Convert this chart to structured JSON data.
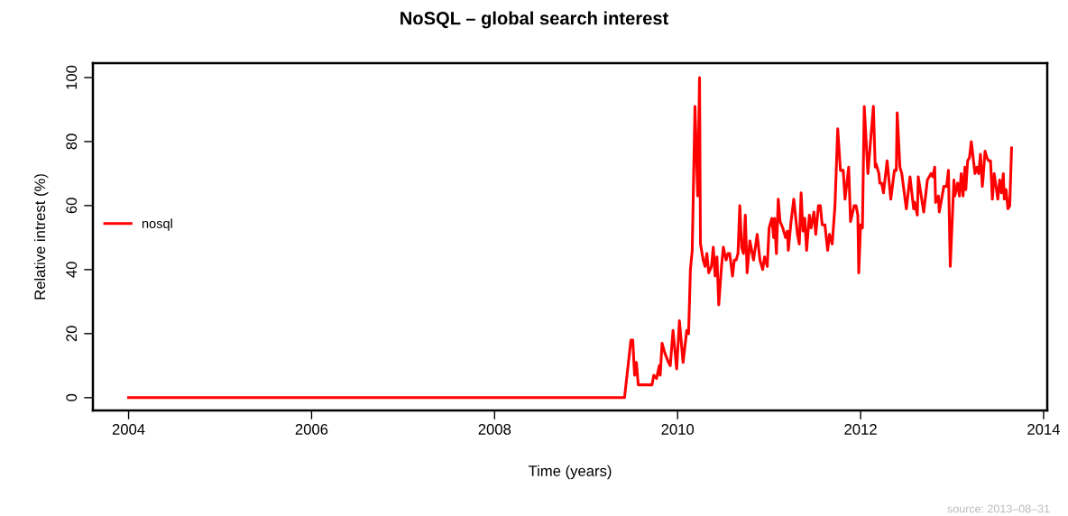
{
  "chart_data": {
    "type": "line",
    "title": "NoSQL – global search interest",
    "xlabel": "Time (years)",
    "ylabel": "Relative intrest (%)",
    "annotations": [
      "source: 2013–08–31"
    ],
    "series": [
      {
        "name": "nosql",
        "color": "#ff0000",
        "x": [
          2004.0,
          2009.42,
          2009.49,
          2009.51,
          2009.53,
          2009.55,
          2009.57,
          2009.72,
          2009.74,
          2009.77,
          2009.8,
          2009.81,
          2009.83,
          2009.86,
          2009.9,
          2009.92,
          2009.95,
          2009.99,
          2010.02,
          2010.06,
          2010.1,
          2010.12,
          2010.14,
          2010.16,
          2010.19,
          2010.22,
          2010.24,
          2010.25,
          2010.28,
          2010.3,
          2010.32,
          2010.34,
          2010.37,
          2010.39,
          2010.41,
          2010.43,
          2010.45,
          2010.48,
          2010.5,
          2010.53,
          2010.55,
          2010.57,
          2010.6,
          2010.62,
          2010.64,
          2010.66,
          2010.68,
          2010.7,
          2010.72,
          2010.74,
          2010.76,
          2010.79,
          2010.83,
          2010.87,
          2010.9,
          2010.93,
          2010.95,
          2010.98,
          2011.0,
          2011.03,
          2011.05,
          2011.06,
          2011.08,
          2011.1,
          2011.12,
          2011.15,
          2011.18,
          2011.2,
          2011.21,
          2011.24,
          2011.27,
          2011.31,
          2011.33,
          2011.35,
          2011.37,
          2011.39,
          2011.41,
          2011.44,
          2011.46,
          2011.49,
          2011.51,
          2011.54,
          2011.56,
          2011.58,
          2011.61,
          2011.64,
          2011.66,
          2011.69,
          2011.72,
          2011.75,
          2011.78,
          2011.81,
          2011.83,
          2011.87,
          2011.89,
          2011.93,
          2011.95,
          2011.97,
          2011.98,
          2012.0,
          2012.02,
          2012.04,
          2012.08,
          2012.14,
          2012.16,
          2012.17,
          2012.2,
          2012.21,
          2012.23,
          2012.25,
          2012.29,
          2012.33,
          2012.37,
          2012.39,
          2012.4,
          2012.43,
          2012.45,
          2012.5,
          2012.54,
          2012.58,
          2012.59,
          2012.62,
          2012.63,
          2012.69,
          2012.73,
          2012.77,
          2012.79,
          2012.81,
          2012.82,
          2012.85,
          2012.86,
          2012.91,
          2012.94,
          2012.96,
          2012.98,
          2013.02,
          2013.03,
          2013.06,
          2013.08,
          2013.1,
          2013.12,
          2013.14,
          2013.15,
          2013.17,
          2013.19,
          2013.21,
          2013.25,
          2013.27,
          2013.29,
          2013.31,
          2013.33,
          2013.34,
          2013.36,
          2013.38,
          2013.4,
          2013.42,
          2013.44,
          2013.46,
          2013.5,
          2013.52,
          2013.54,
          2013.56,
          2013.57,
          2013.59,
          2013.61,
          2013.63,
          2013.65
        ],
        "values": [
          0,
          0,
          18,
          18,
          7,
          11,
          4,
          4,
          7,
          6,
          10,
          7,
          17,
          14,
          11,
          10,
          21,
          9,
          24,
          11,
          21,
          20,
          40,
          46,
          91,
          63,
          100,
          48,
          43,
          41,
          45,
          39,
          41,
          47,
          38,
          44,
          29,
          41,
          47,
          43,
          45,
          45,
          38,
          43,
          43,
          45,
          60,
          47,
          45,
          57,
          39,
          49,
          43,
          51,
          43,
          40,
          44,
          41,
          53,
          56,
          50,
          56,
          45,
          62,
          55,
          53,
          50,
          52,
          46,
          55,
          62,
          51,
          48,
          64,
          52,
          56,
          46,
          57,
          53,
          58,
          51,
          60,
          60,
          54,
          54,
          46,
          51,
          48,
          60,
          84,
          71,
          71,
          62,
          72,
          55,
          60,
          60,
          57,
          39,
          54,
          53,
          91,
          70,
          91,
          72,
          73,
          70,
          67,
          67,
          64,
          74,
          62,
          71,
          71,
          89,
          72,
          70,
          59,
          69,
          59,
          61,
          57,
          69,
          58,
          68,
          70,
          69,
          72,
          61,
          63,
          58,
          66,
          66,
          71,
          41,
          68,
          63,
          67,
          63,
          70,
          63,
          72,
          65,
          74,
          75,
          80,
          70,
          72,
          70,
          76,
          66,
          69,
          77,
          75,
          74,
          74,
          62,
          70,
          62,
          68,
          64,
          70,
          62,
          65,
          59,
          60,
          78
        ]
      }
    ],
    "xlim": [
      2003.61,
      2014.04
    ],
    "ylim": [
      -4,
      104.5
    ],
    "xticks": [
      2004,
      2006,
      2008,
      2010,
      2012,
      2014
    ],
    "yticks": [
      0,
      20,
      40,
      60,
      80,
      100
    ],
    "grid": false,
    "legend": "left",
    "line_style": "solid",
    "marker": "none"
  }
}
